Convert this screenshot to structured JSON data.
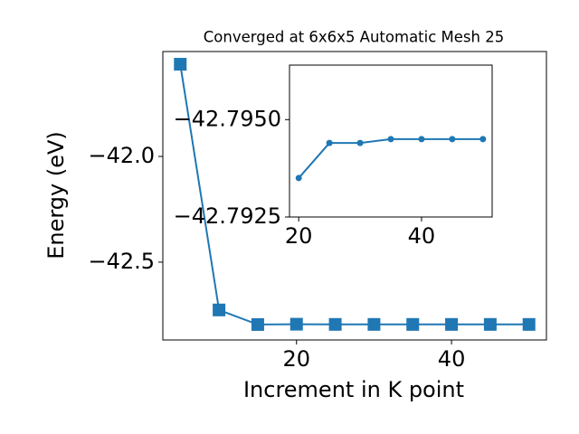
{
  "chart_data": [
    {
      "type": "line",
      "title": "Converged at 6x6x5 Automatic Mesh 25",
      "x_label": "Increment in K point",
      "y_label": "Energy (eV)",
      "x": [
        5,
        10,
        15,
        20,
        25,
        30,
        35,
        40,
        45,
        50
      ],
      "values": [
        -41.564,
        -42.726,
        -42.795,
        -42.7935,
        -42.7944,
        -42.7944,
        -42.7945,
        -42.7945,
        -42.7945,
        -42.7945
      ],
      "color": "#1f77b4",
      "marker": "square",
      "xlim": [
        2.75,
        52.25
      ],
      "xticks": [
        20,
        40
      ],
      "ylim": [
        -42.868,
        -41.504
      ],
      "yticks": [
        {
          "value": -42.5,
          "label": "−42.5"
        },
        {
          "value": -42.0,
          "label": "−42.0"
        }
      ]
    },
    {
      "type": "line",
      "x": [
        20,
        25,
        30,
        35,
        40,
        45,
        50
      ],
      "values": [
        -42.7935,
        -42.7944,
        -42.7944,
        -42.7945,
        -42.7945,
        -42.7945,
        -42.7945
      ],
      "color": "#1f77b4",
      "marker": "circle",
      "xlim": [
        18.5,
        51.5
      ],
      "xticks": [
        20,
        40
      ],
      "ylim": [
        -42.7925,
        -42.7964
      ],
      "yticks": [
        {
          "value": -42.795,
          "label": "−42.7950"
        },
        {
          "value": -42.7925,
          "label": "−42.7925"
        }
      ]
    }
  ]
}
